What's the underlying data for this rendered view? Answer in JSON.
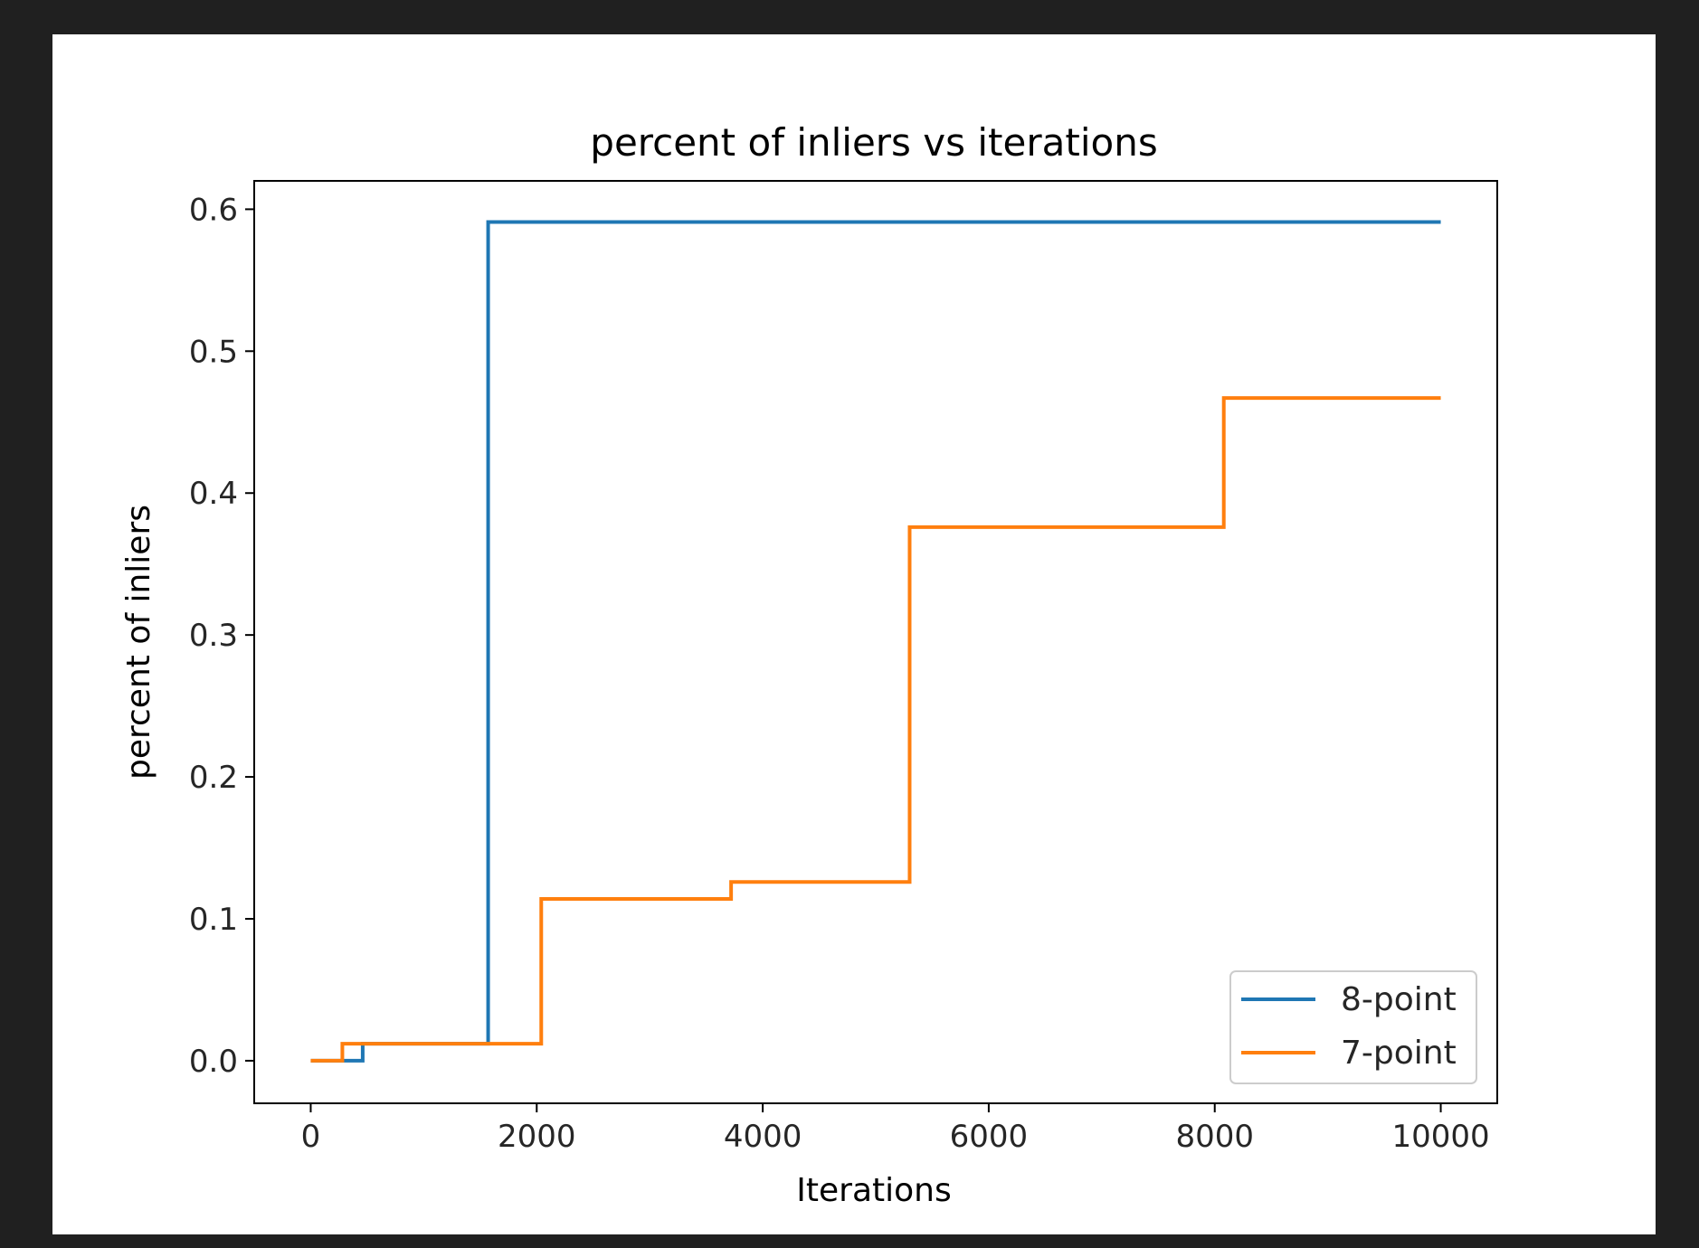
{
  "chart_data": {
    "type": "line",
    "drawstyle": "steps-post",
    "title": "percent of inliers vs iterations",
    "xlabel": "Iterations",
    "ylabel": "percent of inliers",
    "xlim": [
      -500,
      10500
    ],
    "ylim": [
      -0.03,
      0.62
    ],
    "xticks": [
      0,
      2000,
      4000,
      6000,
      8000,
      10000
    ],
    "xtick_labels": [
      "0",
      "2000",
      "4000",
      "6000",
      "8000",
      "10000"
    ],
    "yticks": [
      0.0,
      0.1,
      0.2,
      0.3,
      0.4,
      0.5,
      0.6
    ],
    "ytick_labels": [
      "0.0",
      "0.1",
      "0.2",
      "0.3",
      "0.4",
      "0.5",
      "0.6"
    ],
    "grid": false,
    "legend_position": "lower-right",
    "series": [
      {
        "name": "8-point",
        "color": "#1f77b4",
        "x": [
          0,
          460,
          1570,
          10000
        ],
        "y": [
          0.0,
          0.012,
          0.591,
          0.591
        ]
      },
      {
        "name": "7-point",
        "color": "#ff7f0e",
        "x": [
          0,
          280,
          2040,
          3720,
          5300,
          8080,
          10000
        ],
        "y": [
          0.0,
          0.012,
          0.114,
          0.126,
          0.376,
          0.467,
          0.467
        ]
      }
    ]
  }
}
